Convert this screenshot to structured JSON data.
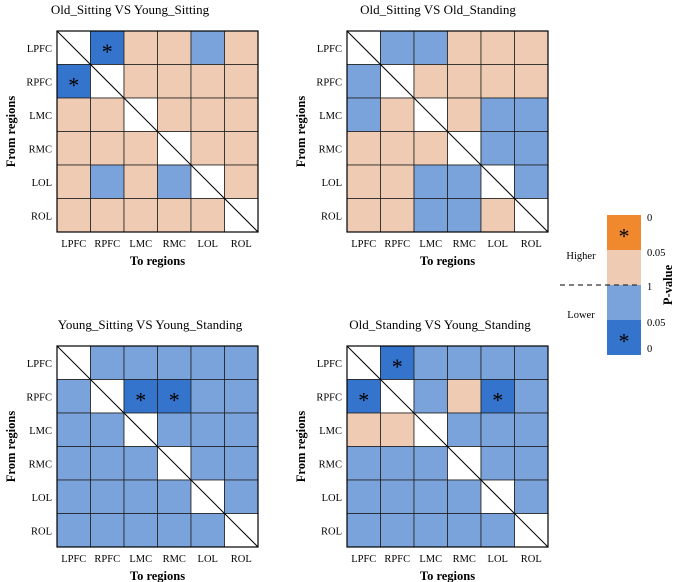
{
  "colors": {
    "higher_sig": "#f0892e",
    "higher": "#f0cbb3",
    "lower": "#7aa3dc",
    "lower_sig": "#3574cc",
    "diagonal": "#ffffff",
    "grid": "#222222"
  },
  "legend": {
    "title": "P-value",
    "higher_label": "Higher",
    "lower_label": "Lower",
    "ticks": [
      "0",
      "0.05",
      "1",
      "0.05",
      "0"
    ],
    "star": "*"
  },
  "chart_data": [
    {
      "type": "heatmap",
      "title": "Old_Sitting VS Young_Sitting",
      "xlabel": "To regions",
      "ylabel": "From regions",
      "categories": [
        "LPFC",
        "RPFC",
        "LMC",
        "RMC",
        "LOL",
        "ROL"
      ],
      "cells": [
        [
          "diag",
          "lower_sig",
          "higher",
          "higher",
          "lower",
          "higher"
        ],
        [
          "lower_sig",
          "diag",
          "higher",
          "higher",
          "higher",
          "higher"
        ],
        [
          "higher",
          "higher",
          "diag",
          "higher",
          "higher",
          "higher"
        ],
        [
          "higher",
          "higher",
          "higher",
          "diag",
          "higher",
          "higher"
        ],
        [
          "higher",
          "lower",
          "higher",
          "lower",
          "diag",
          "higher"
        ],
        [
          "higher",
          "higher",
          "higher",
          "higher",
          "higher",
          "diag"
        ]
      ]
    },
    {
      "type": "heatmap",
      "title": "Old_Sitting VS Old_Standing",
      "xlabel": "To regions",
      "ylabel": "From regions",
      "categories": [
        "LPFC",
        "RPFC",
        "LMC",
        "RMC",
        "LOL",
        "ROL"
      ],
      "cells": [
        [
          "diag",
          "lower",
          "lower",
          "higher",
          "higher",
          "higher"
        ],
        [
          "lower",
          "diag",
          "higher",
          "higher",
          "higher",
          "higher"
        ],
        [
          "lower",
          "higher",
          "diag",
          "higher",
          "lower",
          "lower"
        ],
        [
          "higher",
          "higher",
          "higher",
          "diag",
          "lower",
          "lower"
        ],
        [
          "higher",
          "higher",
          "lower",
          "lower",
          "diag",
          "lower"
        ],
        [
          "higher",
          "higher",
          "lower",
          "lower",
          "higher",
          "diag"
        ]
      ]
    },
    {
      "type": "heatmap",
      "title": "Young_Sitting VS Young_Standing",
      "xlabel": "To regions",
      "ylabel": "From regions",
      "categories": [
        "LPFC",
        "RPFC",
        "LMC",
        "RMC",
        "LOL",
        "ROL"
      ],
      "cells": [
        [
          "diag",
          "lower",
          "lower",
          "lower",
          "lower",
          "lower"
        ],
        [
          "lower",
          "diag",
          "lower_sig",
          "lower_sig",
          "lower",
          "lower"
        ],
        [
          "lower",
          "lower",
          "diag",
          "lower",
          "lower",
          "lower"
        ],
        [
          "lower",
          "lower",
          "lower",
          "diag",
          "lower",
          "lower"
        ],
        [
          "lower",
          "lower",
          "lower",
          "lower",
          "diag",
          "lower"
        ],
        [
          "lower",
          "lower",
          "lower",
          "lower",
          "lower",
          "diag"
        ]
      ]
    },
    {
      "type": "heatmap",
      "title": "Old_Standing VS Young_Standing",
      "xlabel": "To regions",
      "ylabel": "From regions",
      "categories": [
        "LPFC",
        "RPFC",
        "LMC",
        "RMC",
        "LOL",
        "ROL"
      ],
      "cells": [
        [
          "diag",
          "lower_sig",
          "lower",
          "lower",
          "lower",
          "lower"
        ],
        [
          "lower_sig",
          "diag",
          "lower",
          "higher",
          "lower_sig",
          "lower"
        ],
        [
          "higher",
          "higher",
          "diag",
          "lower",
          "lower",
          "lower"
        ],
        [
          "lower",
          "lower",
          "lower",
          "diag",
          "lower",
          "lower"
        ],
        [
          "lower",
          "lower",
          "lower",
          "lower",
          "diag",
          "lower"
        ],
        [
          "lower",
          "lower",
          "lower",
          "lower",
          "lower",
          "diag"
        ]
      ]
    }
  ]
}
